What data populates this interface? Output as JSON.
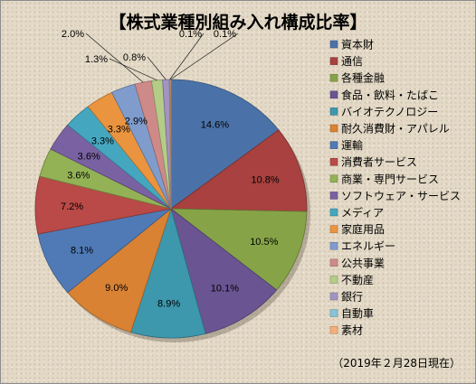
{
  "chart_data": {
    "type": "pie",
    "title": "【株式業種別組み入れ構成比率】",
    "note": "（2019年２月28日現在）",
    "unit": "%",
    "legend_position": "right",
    "slices": [
      {
        "name": "資本財",
        "value": 14.6,
        "label": "14.6%",
        "color": "#4a72a8"
      },
      {
        "name": "通信",
        "value": 10.8,
        "label": "10.8%",
        "color": "#a8413f"
      },
      {
        "name": "各種金融",
        "value": 10.5,
        "label": "10.5%",
        "color": "#86a447"
      },
      {
        "name": "食品・飲料・たばこ",
        "value": 10.1,
        "label": "10.1%",
        "color": "#6b5492"
      },
      {
        "name": "バイオテクノロジー",
        "value": 8.9,
        "label": "8.9%",
        "color": "#3d97ad"
      },
      {
        "name": "耐久消費財・アパレル",
        "value": 9.0,
        "label": "9.0%",
        "color": "#d98233"
      },
      {
        "name": "運輸",
        "value": 8.1,
        "label": "8.1%",
        "color": "#4f7ab6"
      },
      {
        "name": "消費者サービス",
        "value": 7.2,
        "label": "7.2%",
        "color": "#b94a47"
      },
      {
        "name": "商業・専門サービス",
        "value": 3.6,
        "label": "3.6%",
        "color": "#93b255"
      },
      {
        "name": "ソフトウェア・サービス",
        "value": 3.6,
        "label": "3.6%",
        "color": "#7a62a2"
      },
      {
        "name": "メディア",
        "value": 3.3,
        "label": "3.3%",
        "color": "#45a7bf"
      },
      {
        "name": "家庭用品",
        "value": 3.3,
        "label": "3.3%",
        "color": "#ea9440"
      },
      {
        "name": "エネルギー",
        "value": 2.9,
        "label": "2.9%",
        "color": "#7f9ccd"
      },
      {
        "name": "公共事業",
        "value": 2.0,
        "label": "2.0%",
        "color": "#ce8a88"
      },
      {
        "name": "不動産",
        "value": 1.3,
        "label": "1.3%",
        "color": "#b5cc88"
      },
      {
        "name": "銀行",
        "value": 0.8,
        "label": "0.8%",
        "color": "#a294c1"
      },
      {
        "name": "自動車",
        "value": 0.1,
        "label": "0.1%",
        "color": "#87c3d6"
      },
      {
        "name": "素材",
        "value": 0.1,
        "label": "0.1%",
        "color": "#f5ae7a"
      }
    ]
  }
}
